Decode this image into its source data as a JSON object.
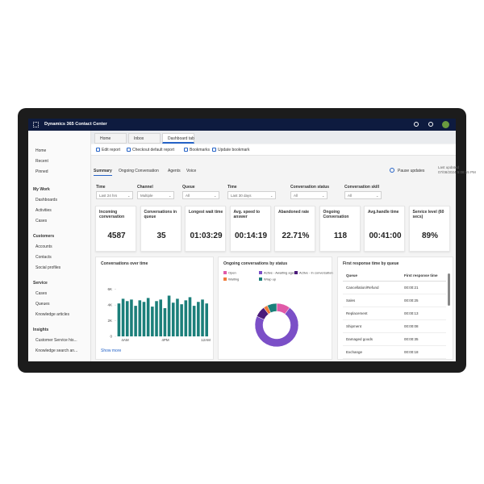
{
  "app": {
    "title": "Dynamics 365 Contact Center"
  },
  "tabs": [
    "Home",
    "Inbox",
    "Dashboard tab"
  ],
  "nav": {
    "top": [
      "Home",
      "Recent",
      "Pinned"
    ],
    "sections": [
      {
        "title": "My Work",
        "items": [
          "Dashboards",
          "Activities",
          "Cases"
        ]
      },
      {
        "title": "Customers",
        "items": [
          "Accounts",
          "Contacts",
          "Social profiles"
        ]
      },
      {
        "title": "Service",
        "items": [
          "Cases",
          "Queues",
          "Knowledge articles"
        ]
      },
      {
        "title": "Insights",
        "items": [
          "Customer Service his...",
          "Knowledge search an..."
        ]
      }
    ]
  },
  "toolbar": [
    "Edit report",
    "Checkout default report",
    "Bookmarks",
    "Update bookmark"
  ],
  "subtabs": [
    "Summary",
    "Ongoing Conversation",
    "Agents",
    "Voice"
  ],
  "pause": "Pause updates",
  "last_updated": {
    "label": "Last updated",
    "value": "07/08/2024 5:08:15 PM"
  },
  "filters": [
    {
      "label": "Time",
      "value": "Last 24 hrs"
    },
    {
      "label": "Channel",
      "value": "Multiple"
    },
    {
      "label": "Queue",
      "value": "All"
    },
    {
      "label": "Time",
      "value": "Last 30 days"
    },
    {
      "label": "Conversation status",
      "value": "All"
    },
    {
      "label": "Conversation skill",
      "value": "All"
    }
  ],
  "kpis": [
    {
      "label": "Incoming conversation",
      "value": "4587"
    },
    {
      "label": "Conversations in queue",
      "value": "35"
    },
    {
      "label": "Longest wait time",
      "value": "01:03:29"
    },
    {
      "label": "Avg. speed to answer",
      "value": "00:14:19"
    },
    {
      "label": "Abandoned rate",
      "value": "22.71%"
    },
    {
      "label": "Ongoing Conversation",
      "value": "118"
    },
    {
      "label": "Avg.handle time",
      "value": "00:41:00"
    },
    {
      "label": "Service level (60 secs)",
      "value": "89%"
    }
  ],
  "conversations_chart": {
    "type": "bar",
    "title": "Conversations over time",
    "color": "#1b7f7a",
    "values": [
      4200,
      4800,
      4500,
      4700,
      3900,
      4600,
      4400,
      4900,
      3800,
      4500,
      4700,
      3600,
      5200,
      4300,
      4800,
      4100,
      4600,
      5000,
      3900,
      4400,
      4700,
      4200
    ],
    "ylim": [
      0,
      7000
    ],
    "yticks": [
      0,
      {
        "value": 2000,
        "label": "2K"
      },
      {
        "value": 4000,
        "label": "4K"
      },
      {
        "value": 6000,
        "label": "6K"
      }
    ],
    "xlabels": [
      "4AM",
      "4PM",
      "12AM"
    ],
    "link": "Show more"
  },
  "status_chart": {
    "type": "pie",
    "title": "Ongoing conversations by status",
    "series": [
      {
        "name": "Open",
        "color": "#e05aa8",
        "value": 10
      },
      {
        "name": "Active - Awaiting agent",
        "color": "#7b4fc7",
        "value": 70
      },
      {
        "name": "Active - In conversation",
        "color": "#4b1a7a",
        "value": 8
      },
      {
        "name": "Waiting",
        "color": "#f07a3a",
        "value": 3
      },
      {
        "name": "Wrap up",
        "color": "#1b7f7a",
        "value": 7
      }
    ]
  },
  "queue_table": {
    "title": "First response time by queue",
    "columns": [
      "Queue",
      "First response time"
    ],
    "rows": [
      [
        "Cancellation/Refund",
        "00:00:21"
      ],
      [
        "Sales",
        "00:00:25"
      ],
      [
        "Replacement",
        "00:00:13"
      ],
      [
        "Shipment",
        "00:00:08"
      ],
      [
        "Damaged goods",
        "00:00:35"
      ],
      [
        "Exchange",
        "00:00:18"
      ]
    ]
  }
}
